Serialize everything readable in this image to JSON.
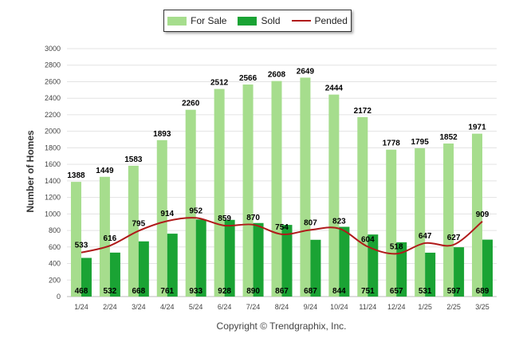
{
  "legend": {
    "for_sale": "For Sale",
    "sold": "Sold",
    "pended": "Pended"
  },
  "copyright": "Copyright © Trendgraphix, Inc.",
  "colors": {
    "for_sale": "#a6dd8d",
    "sold": "#1aa334",
    "pended": "#b01a1a"
  },
  "chart_data": {
    "type": "bar",
    "ylabel": "Number of Homes",
    "ylim": [
      0,
      3000
    ],
    "yticks": [
      0,
      200,
      400,
      600,
      800,
      1000,
      1200,
      1400,
      1600,
      1800,
      2000,
      2200,
      2400,
      2600,
      2800,
      3000
    ],
    "grid": true,
    "legend_position": "top-center",
    "categories": [
      "1/24",
      "2/24",
      "3/24",
      "4/24",
      "5/24",
      "6/24",
      "7/24",
      "8/24",
      "9/24",
      "10/24",
      "11/24",
      "12/24",
      "1/25",
      "2/25",
      "3/25"
    ],
    "series": [
      {
        "name": "For Sale",
        "kind": "bar",
        "values": [
          1388,
          1449,
          1583,
          1893,
          2260,
          2512,
          2566,
          2608,
          2649,
          2444,
          2172,
          1778,
          1795,
          1852,
          1971
        ]
      },
      {
        "name": "Sold",
        "kind": "bar",
        "values": [
          468,
          532,
          668,
          761,
          933,
          928,
          890,
          867,
          687,
          844,
          751,
          657,
          531,
          597,
          689
        ]
      },
      {
        "name": "Pended",
        "kind": "line",
        "values": [
          533,
          616,
          795,
          914,
          952,
          859,
          870,
          754,
          807,
          823,
          604,
          518,
          647,
          627,
          909
        ]
      }
    ]
  }
}
